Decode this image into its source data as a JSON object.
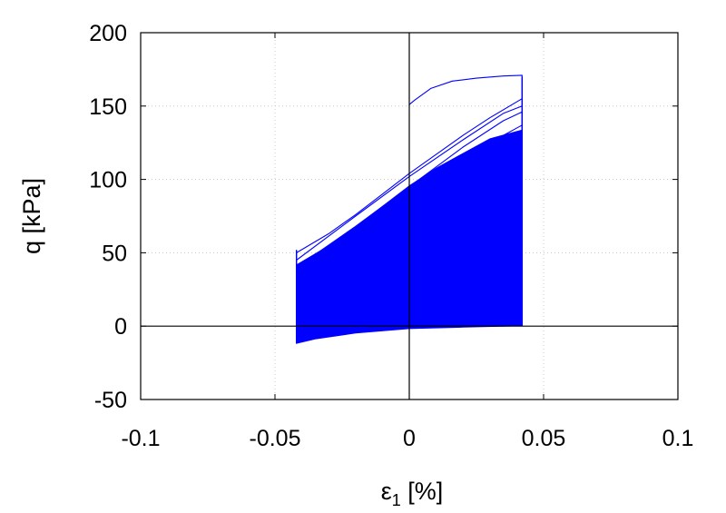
{
  "chart_data": {
    "type": "line",
    "xlabel_main": "ε",
    "xlabel_sub": "1",
    "xlabel_unit": " [%]",
    "ylabel": "q [kPa]",
    "xlim": [
      -0.1,
      0.1
    ],
    "ylim": [
      -50,
      200
    ],
    "xticks": [
      -0.1,
      -0.05,
      0,
      0.05,
      0.1
    ],
    "xtick_labels": [
      "-0.1",
      "-0.05",
      "0",
      "0.05",
      "0.1"
    ],
    "yticks": [
      -50,
      0,
      50,
      100,
      150,
      200
    ],
    "ytick_labels": [
      "-50",
      "0",
      "50",
      "100",
      "150",
      "200"
    ],
    "grid": true,
    "zero_lines": true,
    "series_color": "#0000ff",
    "strain_amplitude": [
      -0.042,
      0.042
    ],
    "cycles": [
      {
        "x": [
          -0.042,
          -0.042,
          -0.02,
          0.0,
          0.02,
          0.035,
          0.042,
          0.042
        ],
        "y": [
          50,
          45,
          75,
          102,
          127,
          145,
          150,
          50
        ]
      },
      {
        "x": [
          -0.042,
          -0.042,
          -0.02,
          0.0,
          0.02,
          0.035,
          0.042,
          0.042
        ],
        "y": [
          45,
          40,
          68,
          95,
          122,
          140,
          146,
          45
        ]
      },
      {
        "x": [
          -0.042,
          -0.042,
          -0.02,
          0.0,
          0.02,
          0.035,
          0.042,
          0.042
        ],
        "y": [
          38,
          33,
          60,
          86,
          112,
          130,
          137,
          38
        ]
      },
      {
        "x": [
          -0.042,
          -0.042,
          -0.02,
          0.0,
          0.02,
          0.035,
          0.042,
          0.042
        ],
        "y": [
          30,
          25,
          50,
          75,
          100,
          118,
          126,
          30
        ]
      },
      {
        "x": [
          -0.042,
          -0.042,
          -0.02,
          0.0,
          0.02,
          0.035,
          0.042,
          0.042
        ],
        "y": [
          22,
          18,
          40,
          63,
          86,
          104,
          112,
          22
        ]
      },
      {
        "x": [
          -0.042,
          -0.042,
          -0.02,
          0.0,
          0.02,
          0.035,
          0.042,
          0.042
        ],
        "y": [
          15,
          10,
          30,
          50,
          72,
          88,
          96,
          15
        ]
      },
      {
        "x": [
          -0.042,
          -0.042,
          -0.02,
          0.0,
          0.02,
          0.035,
          0.042,
          0.042
        ],
        "y": [
          8,
          3,
          18,
          35,
          55,
          70,
          80,
          8
        ]
      }
    ],
    "first_loading": {
      "x": [
        0.0,
        0.002,
        0.008,
        0.016,
        0.025,
        0.035,
        0.042,
        0.042
      ],
      "y": [
        151,
        154,
        162,
        167,
        169,
        170.5,
        171,
        150
      ]
    },
    "band_upper": {
      "x": [
        -0.042,
        -0.03,
        -0.02,
        -0.01,
        0.0,
        0.01,
        0.02,
        0.03,
        0.042
      ],
      "y": [
        42,
        55,
        68,
        82,
        96,
        108,
        118,
        128,
        134
      ]
    },
    "band_lower": {
      "x": [
        -0.042,
        -0.035,
        -0.02,
        0.0,
        0.02,
        0.042
      ],
      "y": [
        -12,
        -9,
        -5,
        -2,
        -1,
        0
      ]
    },
    "top_curve": {
      "x": [
        -0.042,
        -0.03,
        -0.02,
        -0.01,
        0.0,
        0.01,
        0.02,
        0.03,
        0.042
      ],
      "y": [
        50,
        63,
        76,
        90,
        104,
        117,
        130,
        142,
        155
      ]
    }
  }
}
